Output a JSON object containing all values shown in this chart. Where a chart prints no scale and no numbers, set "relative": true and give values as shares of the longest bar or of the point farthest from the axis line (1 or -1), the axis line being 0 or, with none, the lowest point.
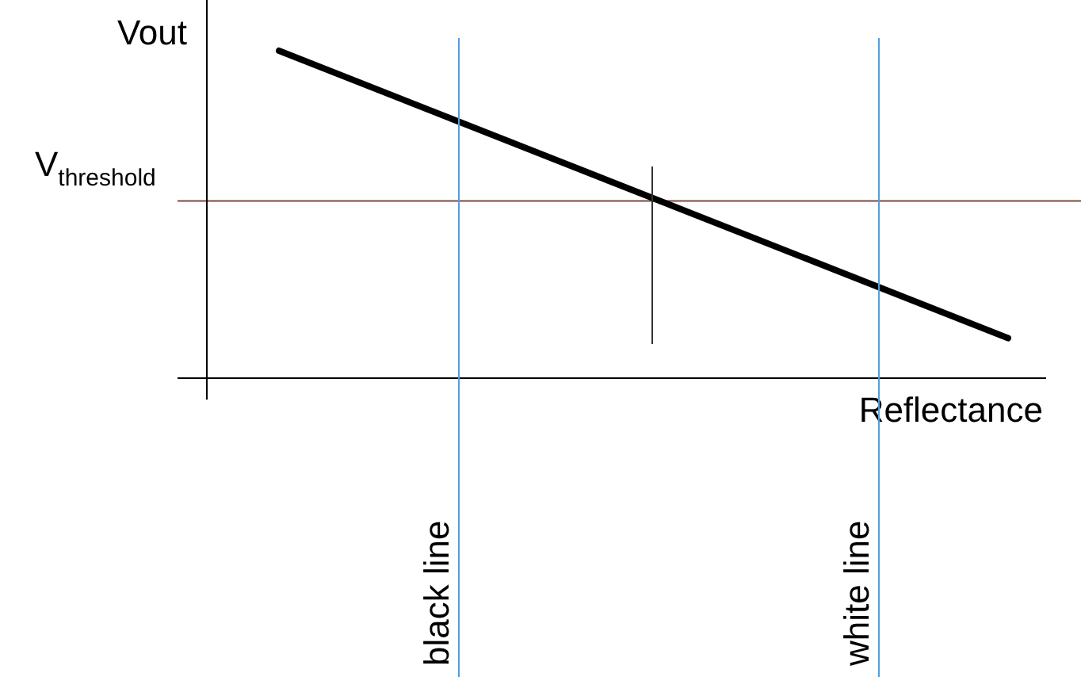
{
  "chart_data": {
    "type": "line",
    "relative": true,
    "xlabel": "Reflectance",
    "ylabel": "Vout",
    "legend": false,
    "marker": "none",
    "line_style": "solid",
    "categories": [
      null,
      null
    ],
    "series": [
      {
        "color": "#000000",
        "values": [
          1,
          0.12
        ]
      }
    ],
    "ref_lines": [
      {
        "axis": "y",
        "value": 0.54,
        "label": "V$_{threshold}$",
        "color": "#7a4a3a"
      }
    ],
    "annotations": [
      "black line",
      "white line"
    ]
  }
}
